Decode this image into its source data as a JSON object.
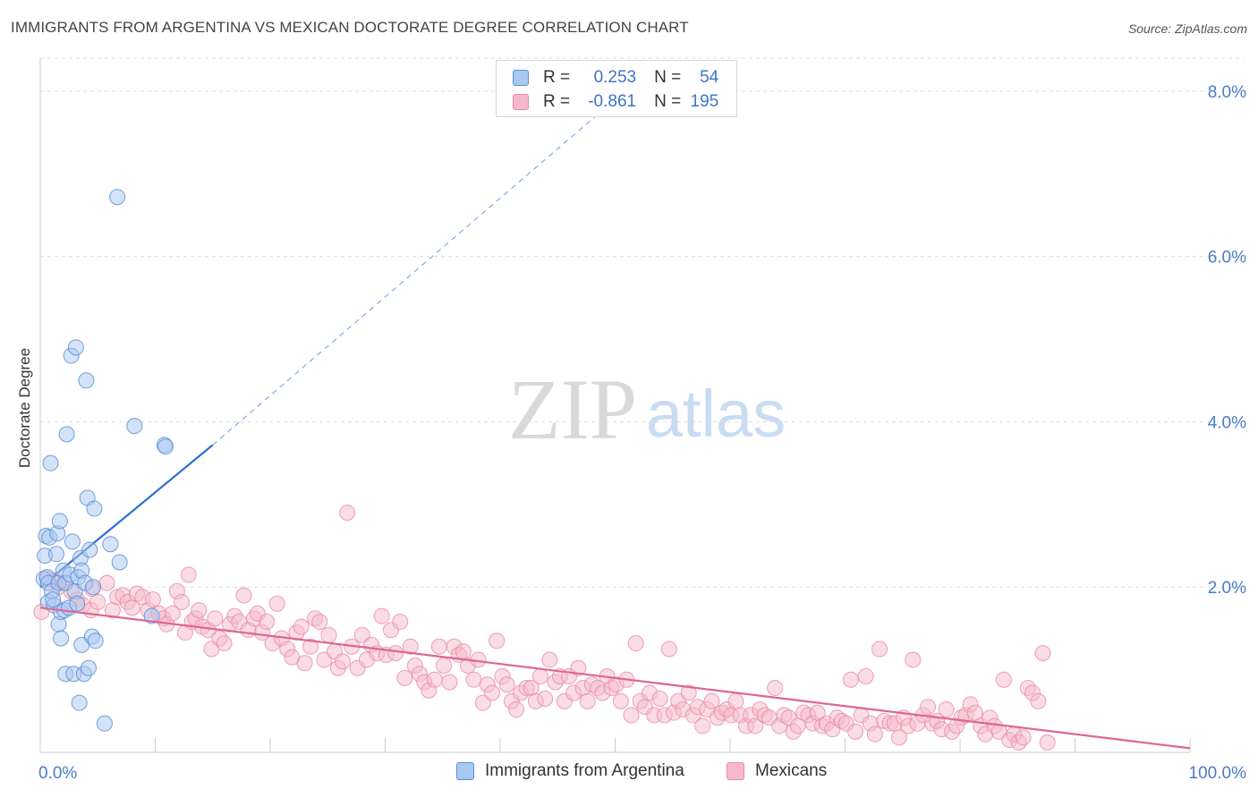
{
  "title": "IMMIGRANTS FROM ARGENTINA VS MEXICAN DOCTORATE DEGREE CORRELATION CHART",
  "source": "Source: ZipAtlas.com",
  "watermark": {
    "zip": "ZIP",
    "atlas": "atlas"
  },
  "colors": {
    "blue_fill": "#a9c8f0",
    "blue_stroke": "#5b8fd8",
    "blue_line": "#2e6fd2",
    "pink_fill": "#f6b9cc",
    "pink_stroke": "#e88aa8",
    "pink_line": "#e06593",
    "grid": "#dddddd",
    "tick_label": "#4a7cc9"
  },
  "legend": {
    "rows": [
      {
        "r_label": "R =",
        "r_value": "0.253",
        "n_label": "N =",
        "n_value": "54"
      },
      {
        "r_label": "R =",
        "r_value": "-0.861",
        "n_label": "N =",
        "n_value": "195"
      }
    ]
  },
  "bottom_legend": {
    "series1": "Immigrants from Argentina",
    "series2": "Mexicans"
  },
  "chart_data": {
    "type": "scatter",
    "title": "IMMIGRANTS FROM ARGENTINA VS MEXICAN DOCTORATE DEGREE CORRELATION CHART",
    "xlabel": "",
    "ylabel": "Doctorate Degree",
    "xlim": [
      0,
      100
    ],
    "ylim": [
      0,
      8.4
    ],
    "x_tick_labels": [
      "0.0%",
      "100.0%"
    ],
    "y_ticks": [
      2,
      4,
      6,
      8
    ],
    "y_tick_labels": [
      "2.0%",
      "4.0%",
      "6.0%",
      "8.0%"
    ],
    "grid": "horizontal dashed",
    "legend_placement": "top-center",
    "series": [
      {
        "name": "Immigrants from Argentina",
        "r": 0.253,
        "n": 54,
        "trend": {
          "x": [
            0,
            15
          ],
          "y": [
            2.0,
            3.72
          ],
          "extended_to": [
            50,
            7.9
          ]
        },
        "points": [
          [
            0.3,
            2.1
          ],
          [
            0.4,
            2.38
          ],
          [
            0.5,
            2.62
          ],
          [
            0.6,
            2.12
          ],
          [
            0.7,
            2.05
          ],
          [
            0.7,
            1.82
          ],
          [
            0.8,
            2.6
          ],
          [
            0.9,
            3.5
          ],
          [
            1.0,
            1.95
          ],
          [
            1.2,
            1.78
          ],
          [
            1.4,
            2.4
          ],
          [
            1.5,
            2.65
          ],
          [
            1.6,
            2.05
          ],
          [
            1.6,
            1.55
          ],
          [
            1.7,
            2.8
          ],
          [
            1.8,
            1.7
          ],
          [
            1.8,
            1.38
          ],
          [
            2.0,
            2.2
          ],
          [
            2.1,
            1.72
          ],
          [
            2.2,
            2.05
          ],
          [
            2.2,
            0.95
          ],
          [
            2.3,
            3.85
          ],
          [
            2.5,
            1.75
          ],
          [
            2.6,
            2.15
          ],
          [
            2.7,
            4.8
          ],
          [
            2.8,
            2.55
          ],
          [
            2.9,
            0.95
          ],
          [
            3.0,
            1.95
          ],
          [
            3.1,
            4.9
          ],
          [
            3.2,
            1.8
          ],
          [
            3.3,
            2.12
          ],
          [
            3.4,
            0.6
          ],
          [
            3.5,
            2.35
          ],
          [
            3.6,
            2.2
          ],
          [
            3.6,
            1.3
          ],
          [
            3.8,
            0.95
          ],
          [
            3.9,
            2.05
          ],
          [
            4.0,
            4.5
          ],
          [
            4.1,
            3.08
          ],
          [
            4.2,
            1.02
          ],
          [
            4.3,
            2.45
          ],
          [
            4.5,
            1.4
          ],
          [
            4.6,
            2.0
          ],
          [
            4.7,
            2.95
          ],
          [
            4.8,
            1.35
          ],
          [
            5.6,
            0.35
          ],
          [
            6.1,
            2.52
          ],
          [
            6.7,
            6.72
          ],
          [
            6.9,
            2.3
          ],
          [
            8.2,
            3.95
          ],
          [
            9.7,
            1.65
          ],
          [
            10.8,
            3.72
          ],
          [
            10.9,
            3.7
          ],
          [
            1.1,
            1.85
          ]
        ]
      },
      {
        "name": "Mexicans",
        "r": -0.861,
        "n": 195,
        "trend": {
          "x": [
            0,
            100
          ],
          "y": [
            1.75,
            0.05
          ]
        },
        "points": [
          [
            0.1,
            1.7
          ],
          [
            0.6,
            2.1
          ],
          [
            1.3,
            2.08
          ],
          [
            1.6,
            2.0
          ],
          [
            2.1,
            2.05
          ],
          [
            2.7,
            1.95
          ],
          [
            3.2,
            1.85
          ],
          [
            3.7,
            1.78
          ],
          [
            4.4,
            1.72
          ],
          [
            4.5,
            1.98
          ],
          [
            5.0,
            1.82
          ],
          [
            5.8,
            2.05
          ],
          [
            6.3,
            1.72
          ],
          [
            6.7,
            1.88
          ],
          [
            7.2,
            1.9
          ],
          [
            7.6,
            1.82
          ],
          [
            8.0,
            1.75
          ],
          [
            8.4,
            1.92
          ],
          [
            8.9,
            1.88
          ],
          [
            9.4,
            1.72
          ],
          [
            9.8,
            1.85
          ],
          [
            10.3,
            1.68
          ],
          [
            10.7,
            1.62
          ],
          [
            11.0,
            1.55
          ],
          [
            11.5,
            1.68
          ],
          [
            11.9,
            1.95
          ],
          [
            12.3,
            1.82
          ],
          [
            12.6,
            1.45
          ],
          [
            12.9,
            2.15
          ],
          [
            13.2,
            1.58
          ],
          [
            13.5,
            1.62
          ],
          [
            13.8,
            1.72
          ],
          [
            14.1,
            1.52
          ],
          [
            14.6,
            1.48
          ],
          [
            14.9,
            1.25
          ],
          [
            15.2,
            1.62
          ],
          [
            15.6,
            1.38
          ],
          [
            16.0,
            1.32
          ],
          [
            16.5,
            1.55
          ],
          [
            16.9,
            1.65
          ],
          [
            17.3,
            1.58
          ],
          [
            17.7,
            1.9
          ],
          [
            18.1,
            1.48
          ],
          [
            18.6,
            1.62
          ],
          [
            18.9,
            1.68
          ],
          [
            19.3,
            1.45
          ],
          [
            19.7,
            1.58
          ],
          [
            20.2,
            1.32
          ],
          [
            20.6,
            1.8
          ],
          [
            21.0,
            1.38
          ],
          [
            21.5,
            1.25
          ],
          [
            21.9,
            1.15
          ],
          [
            22.3,
            1.45
          ],
          [
            22.7,
            1.52
          ],
          [
            23.0,
            1.08
          ],
          [
            23.5,
            1.28
          ],
          [
            23.9,
            1.62
          ],
          [
            24.3,
            1.58
          ],
          [
            24.7,
            1.12
          ],
          [
            25.1,
            1.42
          ],
          [
            25.6,
            1.22
          ],
          [
            25.9,
            1.02
          ],
          [
            26.3,
            1.1
          ],
          [
            26.7,
            2.9
          ],
          [
            27.1,
            1.28
          ],
          [
            27.6,
            1.02
          ],
          [
            28.0,
            1.42
          ],
          [
            28.4,
            1.12
          ],
          [
            28.8,
            1.3
          ],
          [
            29.3,
            1.2
          ],
          [
            29.7,
            1.65
          ],
          [
            30.1,
            1.18
          ],
          [
            30.5,
            1.48
          ],
          [
            30.9,
            1.2
          ],
          [
            31.3,
            1.58
          ],
          [
            31.7,
            0.9
          ],
          [
            32.2,
            1.28
          ],
          [
            32.6,
            1.05
          ],
          [
            33.0,
            0.95
          ],
          [
            33.4,
            0.85
          ],
          [
            33.8,
            0.75
          ],
          [
            34.3,
            0.88
          ],
          [
            34.7,
            1.28
          ],
          [
            35.1,
            1.05
          ],
          [
            35.6,
            0.85
          ],
          [
            36.0,
            1.28
          ],
          [
            36.4,
            1.18
          ],
          [
            36.8,
            1.22
          ],
          [
            37.2,
            1.05
          ],
          [
            37.7,
            0.88
          ],
          [
            38.1,
            1.12
          ],
          [
            38.5,
            0.6
          ],
          [
            38.9,
            0.82
          ],
          [
            39.3,
            0.72
          ],
          [
            39.7,
            1.35
          ],
          [
            40.2,
            0.92
          ],
          [
            40.6,
            0.82
          ],
          [
            41.0,
            0.62
          ],
          [
            41.4,
            0.52
          ],
          [
            41.8,
            0.72
          ],
          [
            42.3,
            0.78
          ],
          [
            42.7,
            0.78
          ],
          [
            43.1,
            0.62
          ],
          [
            43.5,
            0.92
          ],
          [
            43.9,
            0.65
          ],
          [
            44.3,
            1.12
          ],
          [
            44.8,
            0.85
          ],
          [
            45.2,
            0.92
          ],
          [
            45.6,
            0.62
          ],
          [
            46.0,
            0.92
          ],
          [
            46.4,
            0.72
          ],
          [
            46.8,
            1.02
          ],
          [
            47.2,
            0.78
          ],
          [
            47.6,
            0.62
          ],
          [
            48.0,
            0.82
          ],
          [
            48.5,
            0.78
          ],
          [
            48.9,
            0.72
          ],
          [
            49.3,
            0.92
          ],
          [
            49.7,
            0.78
          ],
          [
            50.1,
            0.82
          ],
          [
            50.5,
            0.62
          ],
          [
            51.0,
            0.88
          ],
          [
            51.4,
            0.45
          ],
          [
            51.8,
            1.32
          ],
          [
            52.2,
            0.62
          ],
          [
            52.6,
            0.55
          ],
          [
            53.0,
            0.72
          ],
          [
            53.4,
            0.45
          ],
          [
            53.9,
            0.65
          ],
          [
            54.3,
            0.45
          ],
          [
            54.7,
            1.25
          ],
          [
            55.1,
            0.48
          ],
          [
            55.5,
            0.62
          ],
          [
            55.9,
            0.52
          ],
          [
            56.4,
            0.72
          ],
          [
            56.8,
            0.45
          ],
          [
            57.2,
            0.55
          ],
          [
            57.6,
            0.32
          ],
          [
            58.0,
            0.52
          ],
          [
            58.4,
            0.62
          ],
          [
            58.9,
            0.42
          ],
          [
            59.3,
            0.48
          ],
          [
            59.7,
            0.52
          ],
          [
            60.1,
            0.45
          ],
          [
            60.5,
            0.62
          ],
          [
            60.9,
            0.45
          ],
          [
            61.4,
            0.32
          ],
          [
            61.8,
            0.45
          ],
          [
            62.2,
            0.32
          ],
          [
            62.6,
            0.52
          ],
          [
            63.0,
            0.45
          ],
          [
            63.4,
            0.42
          ],
          [
            63.9,
            0.78
          ],
          [
            64.3,
            0.32
          ],
          [
            64.7,
            0.45
          ],
          [
            65.1,
            0.42
          ],
          [
            65.5,
            0.25
          ],
          [
            65.9,
            0.32
          ],
          [
            66.4,
            0.48
          ],
          [
            66.8,
            0.45
          ],
          [
            67.2,
            0.35
          ],
          [
            67.6,
            0.48
          ],
          [
            68.0,
            0.32
          ],
          [
            68.4,
            0.35
          ],
          [
            68.9,
            0.28
          ],
          [
            69.3,
            0.42
          ],
          [
            69.7,
            0.38
          ],
          [
            70.1,
            0.35
          ],
          [
            70.5,
            0.88
          ],
          [
            70.9,
            0.25
          ],
          [
            71.4,
            0.45
          ],
          [
            71.8,
            0.92
          ],
          [
            72.2,
            0.35
          ],
          [
            72.6,
            0.22
          ],
          [
            73.0,
            1.25
          ],
          [
            73.4,
            0.38
          ],
          [
            73.9,
            0.35
          ],
          [
            74.3,
            0.35
          ],
          [
            74.7,
            0.18
          ],
          [
            75.1,
            0.42
          ],
          [
            75.5,
            0.32
          ],
          [
            75.9,
            1.12
          ],
          [
            76.3,
            0.35
          ],
          [
            76.8,
            0.45
          ],
          [
            77.2,
            0.55
          ],
          [
            77.6,
            0.35
          ],
          [
            78.0,
            0.38
          ],
          [
            78.4,
            0.28
          ],
          [
            78.8,
            0.52
          ],
          [
            79.3,
            0.25
          ],
          [
            79.7,
            0.32
          ],
          [
            80.1,
            0.42
          ],
          [
            80.5,
            0.45
          ],
          [
            80.9,
            0.58
          ],
          [
            81.3,
            0.48
          ],
          [
            81.8,
            0.32
          ],
          [
            82.2,
            0.22
          ],
          [
            82.6,
            0.42
          ],
          [
            83.0,
            0.32
          ],
          [
            83.4,
            0.25
          ],
          [
            83.8,
            0.88
          ],
          [
            84.3,
            0.15
          ],
          [
            84.7,
            0.22
          ],
          [
            85.1,
            0.12
          ],
          [
            85.5,
            0.18
          ],
          [
            85.9,
            0.78
          ],
          [
            86.3,
            0.72
          ],
          [
            86.8,
            0.62
          ],
          [
            87.2,
            1.2
          ],
          [
            87.6,
            0.12
          ]
        ]
      }
    ]
  }
}
